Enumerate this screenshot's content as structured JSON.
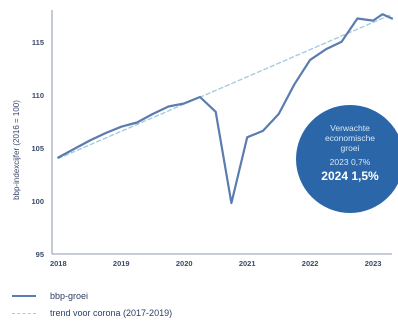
{
  "chart_data": {
    "type": "line",
    "ylabel": "bbp-indexcijfer (2016 = 100)",
    "ylim": [
      95,
      118
    ],
    "yticks": [
      95,
      100,
      105,
      110,
      115
    ],
    "xticks": [
      {
        "value": 2018,
        "label": "2018"
      },
      {
        "value": 2019,
        "label": "2019"
      },
      {
        "value": 2020,
        "label": "2020"
      },
      {
        "value": 2021,
        "label": "2021"
      },
      {
        "value": 2022,
        "label": "2022"
      },
      {
        "value": 2023,
        "label": "2023"
      }
    ],
    "xlim": [
      2017.9,
      2023.3
    ],
    "grid": false,
    "legend_position": "bottom-left",
    "series": [
      {
        "name": "bbp-groei",
        "color": "#5b7cb0",
        "style": "solid",
        "points": [
          [
            2018.0,
            104.1
          ],
          [
            2018.25,
            104.9
          ],
          [
            2018.5,
            105.7
          ],
          [
            2018.75,
            106.4
          ],
          [
            2019.0,
            107.0
          ],
          [
            2019.25,
            107.4
          ],
          [
            2019.5,
            108.2
          ],
          [
            2019.75,
            108.9
          ],
          [
            2020.0,
            109.2
          ],
          [
            2020.25,
            109.8
          ],
          [
            2020.5,
            108.4
          ],
          [
            2020.75,
            99.8
          ],
          [
            2021.0,
            106.0
          ],
          [
            2021.25,
            106.6
          ],
          [
            2021.5,
            108.2
          ],
          [
            2021.75,
            111.0
          ],
          [
            2022.0,
            113.3
          ],
          [
            2022.25,
            114.3
          ],
          [
            2022.5,
            115.0
          ],
          [
            2022.75,
            117.2
          ],
          [
            2023.0,
            117.0
          ],
          [
            2023.15,
            117.6
          ],
          [
            2023.3,
            117.2
          ]
        ]
      },
      {
        "name": "trend voor corona (2017-2019)",
        "color": "#a8cbe0",
        "style": "dashed",
        "points": [
          [
            2018.0,
            104.0
          ],
          [
            2023.3,
            117.6
          ]
        ]
      }
    ],
    "annotation": {
      "text": [
        "Verwachte",
        "economische",
        "groei"
      ],
      "line_2023": "2023 0,7%",
      "line_2024": "2024 1,5%",
      "color": "#2b67a8"
    }
  }
}
